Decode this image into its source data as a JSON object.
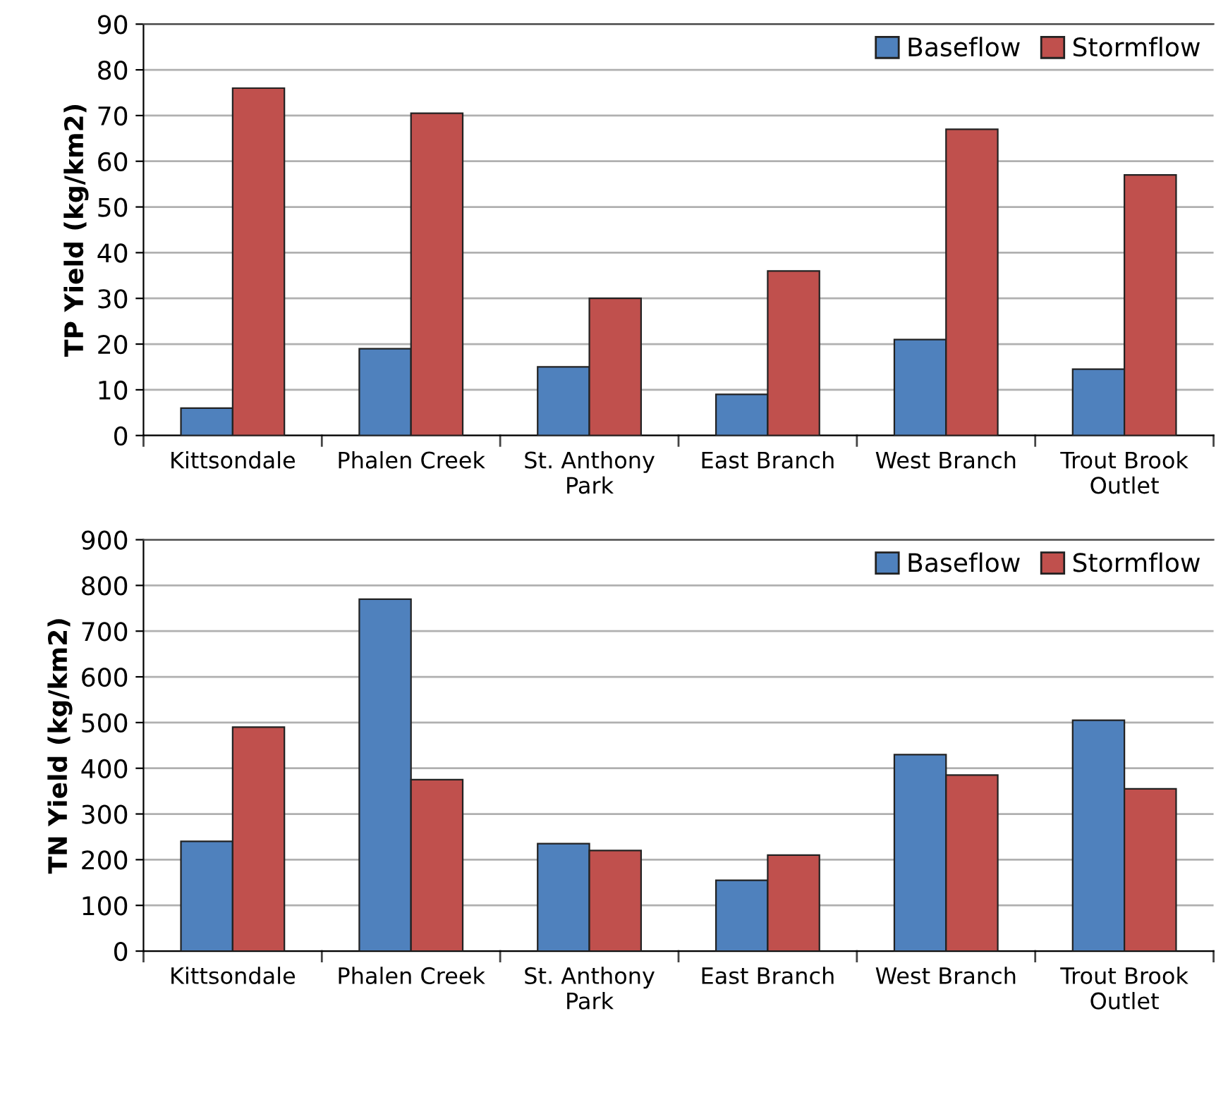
{
  "chart_data": [
    {
      "type": "bar",
      "ylabel": "TP Yield (kg/km2)",
      "categories": [
        "Kittsondale",
        "Phalen Creek",
        "St. Anthony\nPark",
        "East Branch",
        "West Branch",
        "Trout Brook\nOutlet"
      ],
      "series": [
        {
          "name": "Baseflow",
          "color": "#4f81bd",
          "values": [
            6,
            19,
            15,
            9,
            21,
            14.5
          ]
        },
        {
          "name": "Stormflow",
          "color": "#c0504d",
          "values": [
            76,
            70.5,
            30,
            36,
            67,
            57
          ]
        }
      ],
      "ylim": [
        0,
        90
      ],
      "yticks": [
        0,
        10,
        20,
        30,
        40,
        50,
        60,
        70,
        80,
        90
      ],
      "grid": "y",
      "legend": "top right"
    },
    {
      "type": "bar",
      "ylabel": "TN Yield (kg/km2)",
      "categories": [
        "Kittsondale",
        "Phalen Creek",
        "St. Anthony\nPark",
        "East Branch",
        "West Branch",
        "Trout Brook\nOutlet"
      ],
      "series": [
        {
          "name": "Baseflow",
          "color": "#4f81bd",
          "values": [
            240,
            770,
            235,
            155,
            430,
            505
          ]
        },
        {
          "name": "Stormflow",
          "color": "#c0504d",
          "values": [
            490,
            375,
            220,
            210,
            385,
            355
          ]
        }
      ],
      "ylim": [
        0,
        900
      ],
      "yticks": [
        0,
        100,
        200,
        300,
        400,
        500,
        600,
        700,
        800,
        900
      ],
      "grid": "y",
      "legend": "top right"
    }
  ]
}
